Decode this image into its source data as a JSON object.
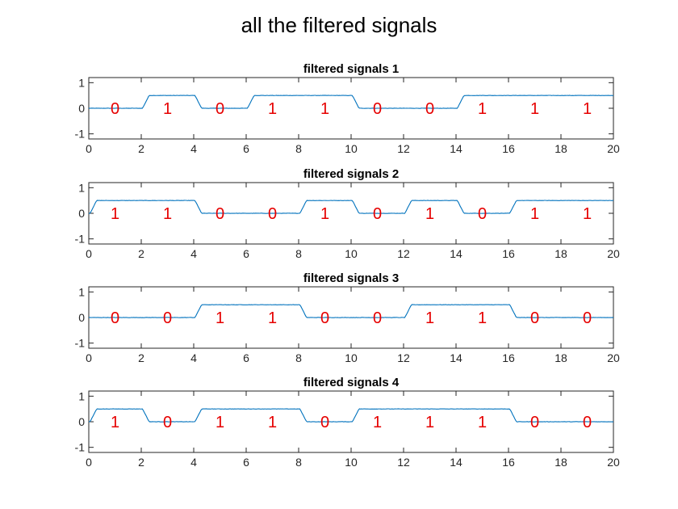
{
  "figure": {
    "suptitle": "all the filtered signals",
    "colors": {
      "signal": "#0072bd",
      "bit_label": "#e60000",
      "axes": "#262626"
    }
  },
  "chart_data": [
    {
      "type": "line",
      "title": "filtered signals 1",
      "xlim": [
        0,
        20
      ],
      "ylim": [
        -1.2,
        1.2
      ],
      "xticks": [
        0,
        2,
        4,
        6,
        8,
        10,
        12,
        14,
        16,
        18,
        20
      ],
      "yticks": [
        1,
        0,
        -1
      ],
      "bits": [
        0,
        1,
        0,
        1,
        1,
        0,
        0,
        1,
        1,
        1
      ],
      "signal_high": 0.5,
      "signal_low": 0,
      "bit_label_x": [
        1,
        3,
        5,
        7,
        9,
        11,
        13,
        15,
        17,
        19
      ],
      "bit_label_y": 0,
      "grid": false
    },
    {
      "type": "line",
      "title": "filtered signals 2",
      "xlim": [
        0,
        20
      ],
      "ylim": [
        -1.2,
        1.2
      ],
      "xticks": [
        0,
        2,
        4,
        6,
        8,
        10,
        12,
        14,
        16,
        18,
        20
      ],
      "yticks": [
        1,
        0,
        -1
      ],
      "bits": [
        1,
        1,
        0,
        0,
        1,
        0,
        1,
        0,
        1,
        1
      ],
      "signal_high": 0.5,
      "signal_low": 0,
      "bit_label_x": [
        1,
        3,
        5,
        7,
        9,
        11,
        13,
        15,
        17,
        19
      ],
      "bit_label_y": 0,
      "grid": false
    },
    {
      "type": "line",
      "title": "filtered signals 3",
      "xlim": [
        0,
        20
      ],
      "ylim": [
        -1.2,
        1.2
      ],
      "xticks": [
        0,
        2,
        4,
        6,
        8,
        10,
        12,
        14,
        16,
        18,
        20
      ],
      "yticks": [
        1,
        0,
        -1
      ],
      "bits": [
        0,
        0,
        1,
        1,
        0,
        0,
        1,
        1,
        0,
        0
      ],
      "signal_high": 0.5,
      "signal_low": 0,
      "bit_label_x": [
        1,
        3,
        5,
        7,
        9,
        11,
        13,
        15,
        17,
        19
      ],
      "bit_label_y": 0,
      "grid": false
    },
    {
      "type": "line",
      "title": "filtered signals 4",
      "xlim": [
        0,
        20
      ],
      "ylim": [
        -1.2,
        1.2
      ],
      "xticks": [
        0,
        2,
        4,
        6,
        8,
        10,
        12,
        14,
        16,
        18,
        20
      ],
      "yticks": [
        1,
        0,
        -1
      ],
      "bits": [
        1,
        0,
        1,
        1,
        0,
        1,
        1,
        1,
        0,
        0
      ],
      "signal_high": 0.5,
      "signal_low": 0,
      "bit_label_x": [
        1,
        3,
        5,
        7,
        9,
        11,
        13,
        15,
        17,
        19
      ],
      "bit_label_y": 0,
      "grid": false
    }
  ]
}
